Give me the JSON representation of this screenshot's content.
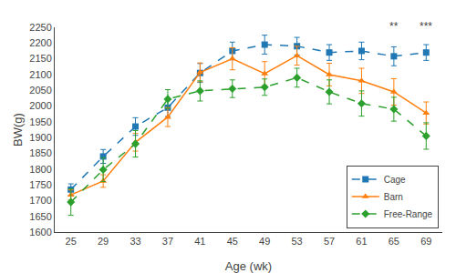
{
  "chart_data": {
    "type": "line",
    "x": [
      25,
      29,
      33,
      37,
      41,
      45,
      49,
      53,
      57,
      61,
      65,
      69
    ],
    "series": [
      {
        "name": "Cage",
        "values": [
          1735,
          1840,
          1935,
          1995,
          2105,
          2175,
          2195,
          2190,
          2170,
          2175,
          2158,
          2170
        ],
        "errors": [
          18,
          22,
          28,
          28,
          30,
          28,
          30,
          28,
          25,
          28,
          30,
          25
        ],
        "marker": "square",
        "line_style": "dashed"
      },
      {
        "name": "Barn",
        "values": [
          1718,
          1762,
          1885,
          1965,
          2107,
          2150,
          2103,
          2160,
          2100,
          2080,
          2045,
          1978
        ],
        "errors": [
          16,
          20,
          28,
          30,
          30,
          35,
          38,
          30,
          36,
          40,
          42,
          35
        ],
        "marker": "triangle",
        "line_style": "solid"
      },
      {
        "name": "Free-Range",
        "values": [
          1695,
          1798,
          1880,
          2022,
          2048,
          2055,
          2060,
          2090,
          2045,
          2008,
          1990,
          1905
        ],
        "errors": [
          42,
          38,
          42,
          30,
          32,
          28,
          26,
          30,
          38,
          40,
          38,
          42
        ],
        "marker": "diamond",
        "line_style": "dashed"
      }
    ],
    "xlabel": "Age (wk)",
    "ylabel": "BW(g)",
    "xlim": [
      23,
      71
    ],
    "xticks": [
      25,
      29,
      33,
      37,
      41,
      45,
      49,
      53,
      57,
      61,
      65,
      69
    ],
    "ylim": [
      1600,
      2250
    ],
    "yticks": [
      1600,
      1650,
      1700,
      1750,
      1800,
      1850,
      1900,
      1950,
      2000,
      2050,
      2100,
      2150,
      2200,
      2250
    ],
    "annotations": [
      {
        "x": 65,
        "y": 2228,
        "text": "**"
      },
      {
        "x": 69,
        "y": 2228,
        "text": "***"
      }
    ],
    "legend": "lower right",
    "grid": false
  }
}
